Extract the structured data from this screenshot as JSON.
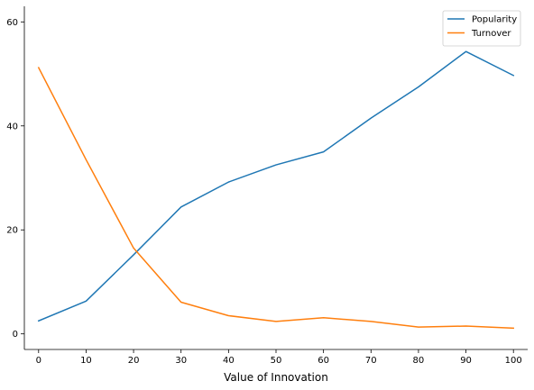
{
  "chart_data": {
    "type": "line",
    "title": "",
    "xlabel": "Value of Innovation",
    "ylabel": "",
    "x": [
      0,
      10,
      20,
      30,
      40,
      50,
      60,
      70,
      80,
      90,
      100
    ],
    "xticks": [
      "0",
      "10",
      "20",
      "30",
      "40",
      "50",
      "60",
      "70",
      "80",
      "90",
      "100"
    ],
    "yticks": [
      "0",
      "20",
      "40",
      "60"
    ],
    "xlim": [
      -3,
      103
    ],
    "ylim": [
      -3,
      63
    ],
    "grid": false,
    "legend_position": "top-right",
    "series": [
      {
        "name": "Popularity",
        "color": "#1f77b4",
        "values": [
          2.5,
          6.3,
          15.2,
          24.4,
          29.2,
          32.5,
          35.0,
          41.5,
          47.5,
          54.3,
          49.7
        ]
      },
      {
        "name": "Turnover",
        "color": "#ff7f0e",
        "values": [
          51.2,
          33.5,
          16.5,
          6.1,
          3.5,
          2.4,
          3.1,
          2.4,
          1.3,
          1.5,
          1.1
        ]
      }
    ]
  }
}
